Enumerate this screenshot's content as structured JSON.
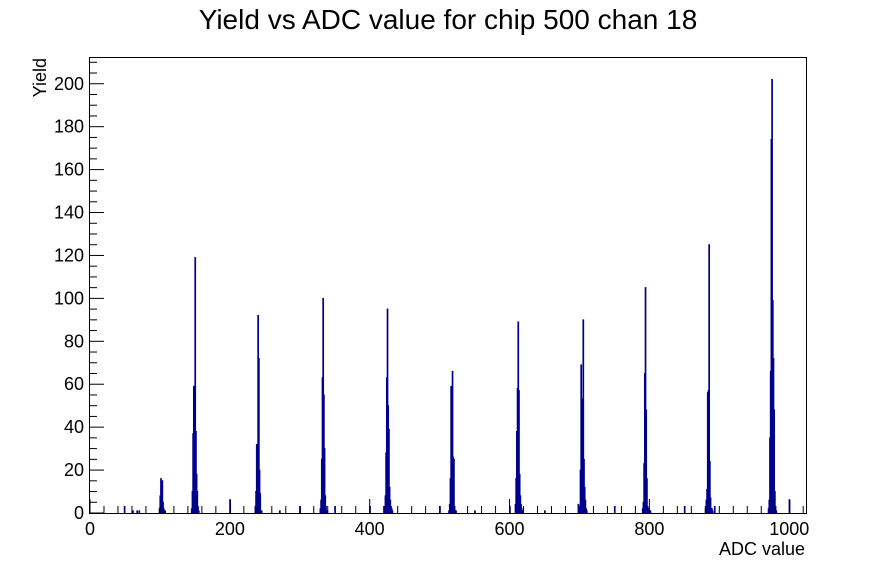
{
  "chart_data": {
    "type": "bar",
    "title": "Yield vs ADC value for chip 500 chan 18",
    "xlabel": "ADC value",
    "ylabel": "Yield",
    "xlim": [
      0,
      1024
    ],
    "ylim": [
      0,
      212
    ],
    "x_ticks": [
      0,
      200,
      400,
      600,
      800,
      1000
    ],
    "y_ticks": [
      0,
      20,
      40,
      60,
      80,
      100,
      120,
      140,
      160,
      180,
      200
    ],
    "grid": false,
    "legend": "none",
    "line_color": "#00008b",
    "series": [
      {
        "x": [
          49,
          61,
          67,
          70,
          99,
          100,
          101,
          102,
          103,
          104,
          105,
          106,
          107,
          145,
          146,
          147,
          148,
          149,
          150,
          151,
          152,
          153,
          154,
          155,
          200,
          236,
          237,
          238,
          239,
          240,
          241,
          242,
          243,
          244,
          245,
          271,
          300,
          329,
          330,
          331,
          332,
          333,
          334,
          335,
          336,
          337,
          338,
          339,
          350,
          400,
          421,
          422,
          423,
          424,
          425,
          426,
          427,
          428,
          429,
          430,
          431,
          432,
          500,
          513,
          514,
          515,
          516,
          517,
          518,
          519,
          520,
          521,
          522,
          523,
          550,
          600,
          608,
          609,
          610,
          611,
          612,
          613,
          614,
          615,
          616,
          617,
          618,
          650,
          698,
          700,
          701,
          702,
          703,
          704,
          705,
          706,
          707,
          708,
          709,
          710,
          750,
          790,
          791,
          792,
          793,
          794,
          795,
          796,
          797,
          798,
          799,
          800,
          801,
          850,
          880,
          881,
          882,
          883,
          884,
          885,
          886,
          887,
          888,
          889,
          890,
          893,
          970,
          971,
          972,
          973,
          974,
          975,
          976,
          977,
          978,
          979,
          980,
          981,
          1000
        ],
        "values": [
          3,
          1,
          1,
          1,
          2,
          8,
          16,
          11,
          15,
          5,
          2,
          1,
          1,
          2,
          10,
          37,
          59,
          46,
          119,
          38,
          18,
          10,
          3,
          1,
          6,
          3,
          10,
          32,
          12,
          92,
          72,
          20,
          9,
          1,
          1,
          1,
          3,
          2,
          6,
          25,
          63,
          100,
          55,
          30,
          8,
          3,
          1,
          1,
          3,
          3,
          3,
          8,
          28,
          63,
          95,
          50,
          39,
          12,
          6,
          3,
          2,
          1,
          3,
          1,
          4,
          16,
          59,
          49,
          66,
          26,
          25,
          3,
          1,
          1,
          1,
          3,
          4,
          16,
          38,
          58,
          89,
          57,
          18,
          8,
          4,
          2,
          1,
          1,
          4,
          2,
          20,
          69,
          53,
          52,
          90,
          25,
          12,
          6,
          2,
          1,
          3,
          2,
          5,
          23,
          65,
          105,
          48,
          16,
          3,
          2,
          1,
          1,
          1,
          3,
          2,
          6,
          11,
          56,
          57,
          125,
          24,
          7,
          2,
          2,
          1,
          3,
          2,
          6,
          35,
          66,
          174,
          202,
          99,
          72,
          48,
          10,
          3,
          1,
          6
        ]
      }
    ]
  }
}
